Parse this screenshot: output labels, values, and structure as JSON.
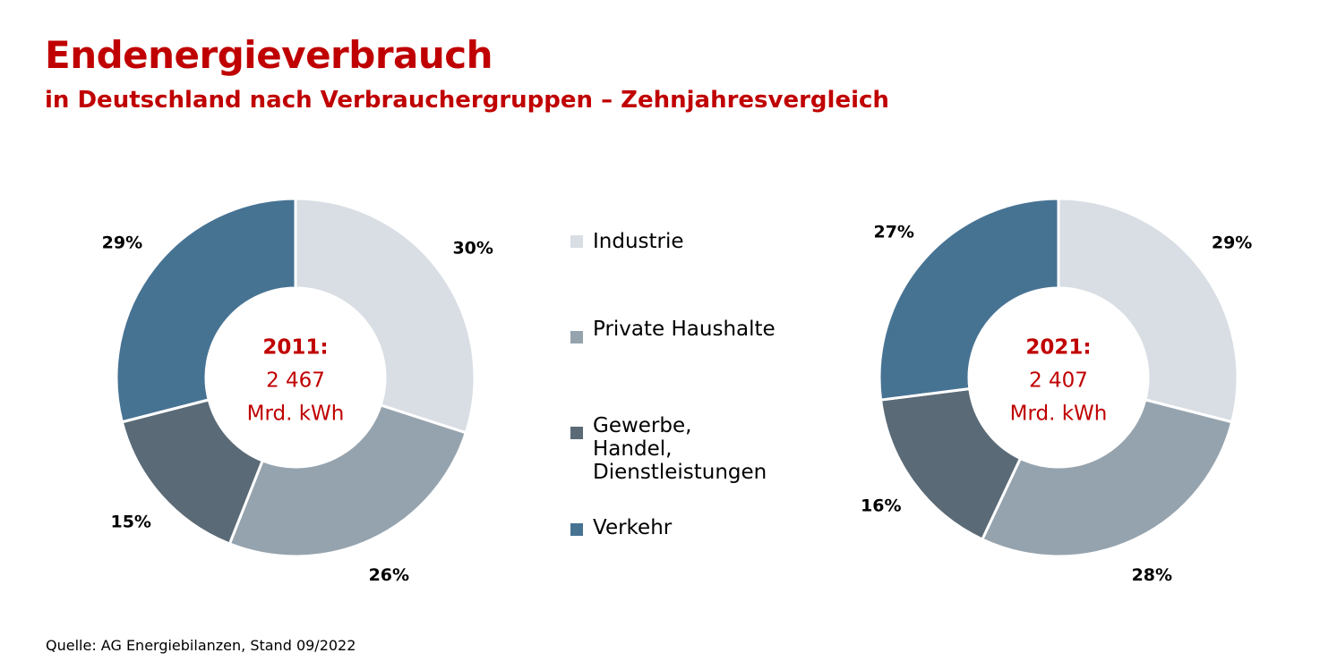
{
  "header": {
    "title": "Endenergieverbrauch",
    "subtitle": "in Deutschland nach Verbrauchergruppen – Zehnjahresvergleich"
  },
  "colors": {
    "accent": "#c00000",
    "series": [
      "#d8dee4",
      "#95a3ae",
      "#5a6a77",
      "#477393"
    ]
  },
  "legend": {
    "items": [
      {
        "label": "Industrie",
        "color": "#d8dee4"
      },
      {
        "label": "Private Haushalte",
        "color": "#95a3ae"
      },
      {
        "label": "Gewerbe,\nHandel,\nDienstleistungen",
        "color": "#5a6a77"
      },
      {
        "label": "Verkehr",
        "color": "#477393"
      }
    ]
  },
  "chart_data": [
    {
      "type": "pie",
      "categories": [
        "Industrie",
        "Private Haushalte",
        "Gewerbe, Handel, Dienstleistungen",
        "Verkehr"
      ],
      "values": [
        30,
        26,
        15,
        29
      ],
      "value_labels": [
        "30%",
        "26%",
        "15%",
        "29%"
      ],
      "center": {
        "year": "2011:",
        "value": "2 467",
        "unit": "Mrd. kWh"
      }
    },
    {
      "type": "pie",
      "categories": [
        "Industrie",
        "Private Haushalte",
        "Gewerbe, Handel, Dienstleistungen",
        "Verkehr"
      ],
      "values": [
        29,
        28,
        16,
        27
      ],
      "value_labels": [
        "29%",
        "28%",
        "16%",
        "27%"
      ],
      "center": {
        "year": "2021:",
        "value": "2 407",
        "unit": "Mrd. kWh"
      }
    }
  ],
  "footer": {
    "source": "Quelle: AG Energiebilanzen, Stand 09/2022"
  }
}
